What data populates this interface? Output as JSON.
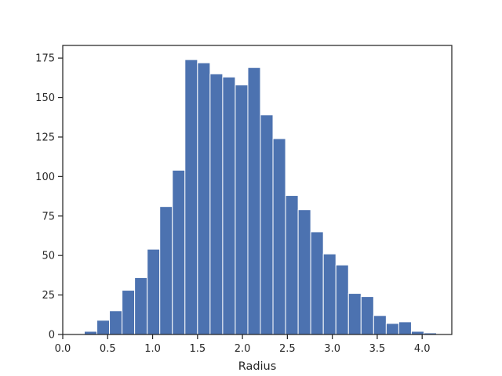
{
  "chart_data": {
    "type": "bar",
    "title": "",
    "xlabel": "Radius",
    "ylabel": "",
    "xlim": [
      0.0,
      4.33
    ],
    "ylim": [
      0,
      183
    ],
    "grid": false,
    "bar_color": "#4c72b0",
    "bar_edge_color": "#ffffff",
    "axis_color": "#262626",
    "x_ticks": [
      {
        "value": 0.0,
        "label": "0.0"
      },
      {
        "value": 0.5,
        "label": "0.5"
      },
      {
        "value": 1.0,
        "label": "1.0"
      },
      {
        "value": 1.5,
        "label": "1.5"
      },
      {
        "value": 2.0,
        "label": "2.0"
      },
      {
        "value": 2.5,
        "label": "2.5"
      },
      {
        "value": 3.0,
        "label": "3.0"
      },
      {
        "value": 3.5,
        "label": "3.5"
      },
      {
        "value": 4.0,
        "label": "4.0"
      }
    ],
    "y_ticks": [
      {
        "value": 0,
        "label": "0"
      },
      {
        "value": 25,
        "label": "25"
      },
      {
        "value": 50,
        "label": "50"
      },
      {
        "value": 75,
        "label": "75"
      },
      {
        "value": 100,
        "label": "100"
      },
      {
        "value": 125,
        "label": "125"
      },
      {
        "value": 150,
        "label": "150"
      },
      {
        "value": 175,
        "label": "175"
      }
    ],
    "bins": [
      {
        "x0": 0.1,
        "x1": 0.24,
        "count": 0
      },
      {
        "x0": 0.24,
        "x1": 0.38,
        "count": 2
      },
      {
        "x0": 0.38,
        "x1": 0.52,
        "count": 9
      },
      {
        "x0": 0.52,
        "x1": 0.66,
        "count": 15
      },
      {
        "x0": 0.66,
        "x1": 0.8,
        "count": 28
      },
      {
        "x0": 0.8,
        "x1": 0.94,
        "count": 36
      },
      {
        "x0": 0.94,
        "x1": 1.08,
        "count": 54
      },
      {
        "x0": 1.08,
        "x1": 1.22,
        "count": 81
      },
      {
        "x0": 1.22,
        "x1": 1.36,
        "count": 104
      },
      {
        "x0": 1.36,
        "x1": 1.5,
        "count": 174
      },
      {
        "x0": 1.5,
        "x1": 1.64,
        "count": 172
      },
      {
        "x0": 1.64,
        "x1": 1.78,
        "count": 165
      },
      {
        "x0": 1.78,
        "x1": 1.92,
        "count": 163
      },
      {
        "x0": 1.92,
        "x1": 2.06,
        "count": 158
      },
      {
        "x0": 2.06,
        "x1": 2.2,
        "count": 169
      },
      {
        "x0": 2.2,
        "x1": 2.34,
        "count": 139
      },
      {
        "x0": 2.34,
        "x1": 2.48,
        "count": 124
      },
      {
        "x0": 2.48,
        "x1": 2.62,
        "count": 88
      },
      {
        "x0": 2.62,
        "x1": 2.76,
        "count": 79
      },
      {
        "x0": 2.76,
        "x1": 2.9,
        "count": 65
      },
      {
        "x0": 2.9,
        "x1": 3.04,
        "count": 51
      },
      {
        "x0": 3.04,
        "x1": 3.18,
        "count": 44
      },
      {
        "x0": 3.18,
        "x1": 3.32,
        "count": 26
      },
      {
        "x0": 3.32,
        "x1": 3.46,
        "count": 24
      },
      {
        "x0": 3.46,
        "x1": 3.6,
        "count": 12
      },
      {
        "x0": 3.6,
        "x1": 3.74,
        "count": 7
      },
      {
        "x0": 3.74,
        "x1": 3.88,
        "count": 8
      },
      {
        "x0": 3.88,
        "x1": 4.02,
        "count": 2
      },
      {
        "x0": 4.02,
        "x1": 4.16,
        "count": 1
      }
    ]
  }
}
